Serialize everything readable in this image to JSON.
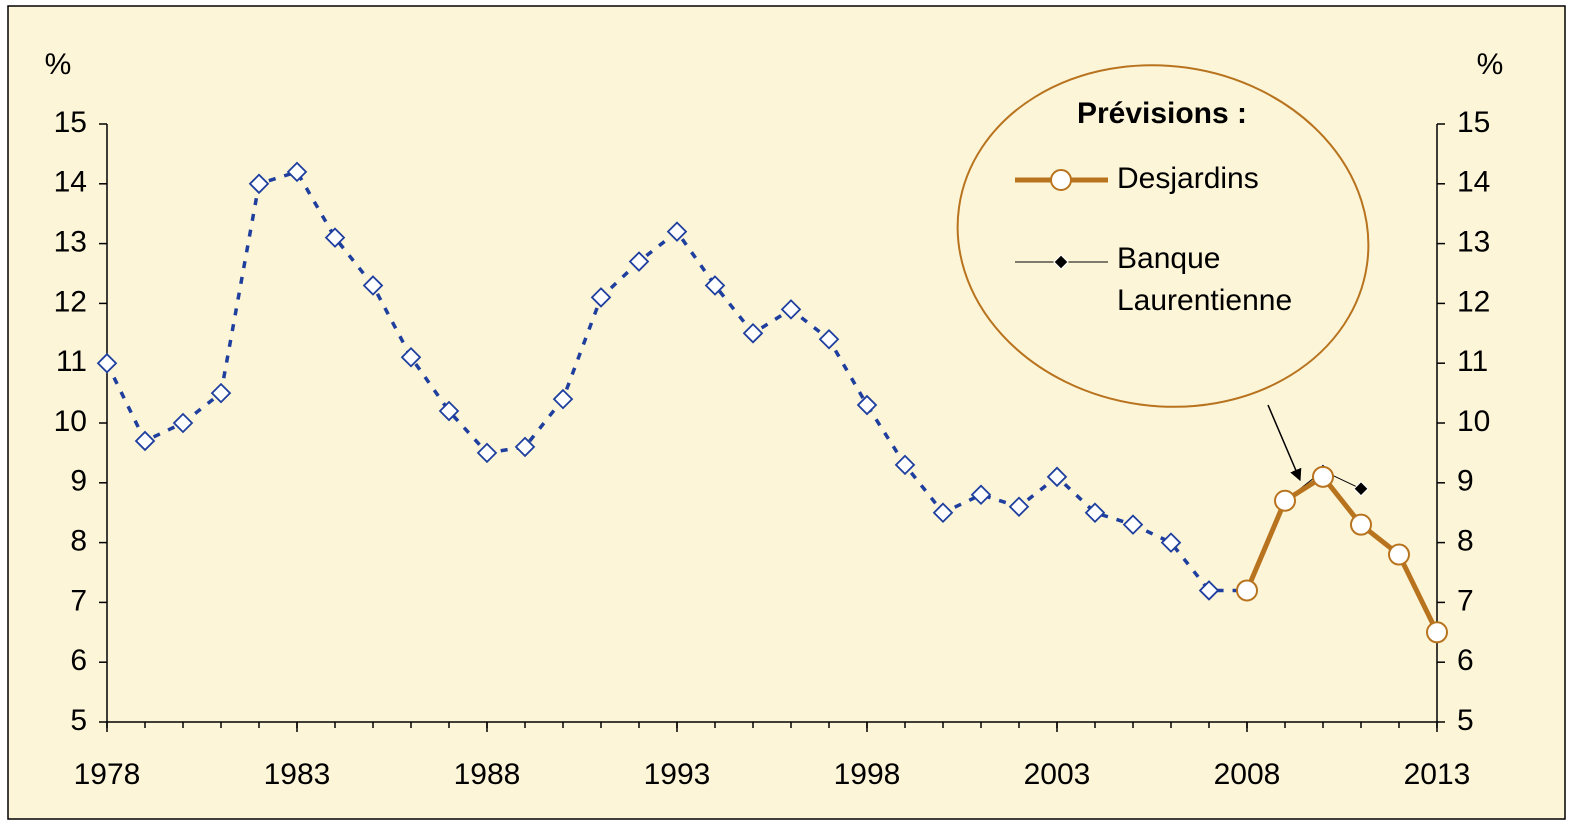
{
  "chart_data": {
    "type": "line",
    "y_label": "%",
    "y2_label": "%",
    "legend_title": "Prévisions :",
    "x": [
      1978,
      1979,
      1980,
      1981,
      1982,
      1983,
      1984,
      1985,
      1986,
      1987,
      1988,
      1989,
      1990,
      1991,
      1992,
      1993,
      1994,
      1995,
      1996,
      1997,
      1998,
      1999,
      2000,
      2001,
      2002,
      2003,
      2004,
      2005,
      2006,
      2007,
      2008,
      2009,
      2010,
      2011,
      2012,
      2013
    ],
    "series": [
      {
        "color": "#1f3f9f",
        "style": "dashed",
        "marker": "diamond-open",
        "values": [
          11.0,
          9.7,
          10.0,
          10.5,
          14.0,
          14.2,
          13.1,
          12.3,
          11.1,
          10.2,
          9.5,
          9.6,
          10.4,
          12.1,
          12.7,
          13.2,
          12.3,
          11.5,
          11.9,
          11.4,
          10.3,
          9.3,
          8.5,
          8.8,
          8.6,
          9.1,
          8.5,
          8.3,
          8.0,
          7.2,
          7.2,
          null,
          null,
          null,
          null,
          null
        ]
      },
      {
        "name": "Desjardins",
        "color": "#b8731e",
        "style": "solid-thick",
        "marker": "circle-open",
        "values": [
          null,
          null,
          null,
          null,
          null,
          null,
          null,
          null,
          null,
          null,
          null,
          null,
          null,
          null,
          null,
          null,
          null,
          null,
          null,
          null,
          null,
          null,
          null,
          null,
          null,
          null,
          null,
          null,
          null,
          null,
          7.2,
          8.7,
          9.1,
          8.3,
          7.8,
          6.5
        ]
      },
      {
        "name": "Banque Laurentienne",
        "color": "#000000",
        "style": "solid-thin",
        "marker": "diamond-filled",
        "values": [
          null,
          null,
          null,
          null,
          null,
          null,
          null,
          null,
          null,
          null,
          null,
          null,
          null,
          null,
          null,
          null,
          null,
          null,
          null,
          null,
          null,
          null,
          null,
          null,
          null,
          null,
          null,
          null,
          null,
          null,
          null,
          8.7,
          9.2,
          8.9,
          null,
          null
        ]
      }
    ],
    "xlim": [
      1978,
      2013
    ],
    "xticks": [
      1978,
      1983,
      1988,
      1993,
      1998,
      2003,
      2008,
      2013
    ],
    "ylim": [
      5,
      15
    ],
    "yticks": [
      5,
      6,
      7,
      8,
      9,
      10,
      11,
      12,
      13,
      14,
      15
    ],
    "y2lim": [
      5,
      15
    ],
    "y2ticks": [
      5,
      6,
      7,
      8,
      9,
      10,
      11,
      12,
      13,
      14,
      15
    ]
  }
}
